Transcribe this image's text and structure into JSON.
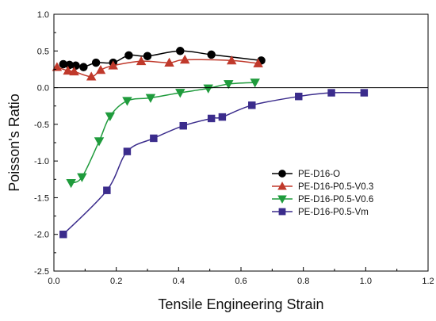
{
  "chart_data": {
    "type": "line",
    "title": "",
    "xlabel": "Tensile Engineering Strain",
    "ylabel": "Poisson's Ratio",
    "xlim": [
      0.0,
      1.2
    ],
    "ylim": [
      -2.5,
      1.0
    ],
    "xticks": [
      "0.0",
      "0.2",
      "0.4",
      "0.6",
      "0.8",
      "1.0",
      "1.2"
    ],
    "yticks": [
      "1.0",
      "0.5",
      "0.0",
      "-0.5",
      "-1.0",
      "-1.5",
      "-2.0",
      "-2.5"
    ],
    "xtick_values": [
      0.0,
      0.2,
      0.4,
      0.6,
      0.8,
      1.0,
      1.2
    ],
    "ytick_values": [
      1.0,
      0.5,
      0.0,
      -0.5,
      -1.0,
      -1.5,
      -2.0,
      -2.5
    ],
    "zero_line": true,
    "grid": false,
    "legend_position": "right-middle",
    "series": [
      {
        "name": "PE-D16-O",
        "color": "#000000",
        "marker": "circle",
        "x": [
          0.03,
          0.05,
          0.07,
          0.095,
          0.135,
          0.19,
          0.24,
          0.3,
          0.405,
          0.505,
          0.665
        ],
        "y": [
          0.32,
          0.31,
          0.3,
          0.28,
          0.34,
          0.34,
          0.44,
          0.43,
          0.5,
          0.45,
          0.37
        ]
      },
      {
        "name": "PE-D16-P0.5-V0.3",
        "color": "#c0392b",
        "marker": "triangle-up",
        "x": [
          0.01,
          0.045,
          0.065,
          0.12,
          0.15,
          0.19,
          0.28,
          0.37,
          0.42,
          0.57,
          0.655
        ],
        "y": [
          0.28,
          0.23,
          0.22,
          0.15,
          0.24,
          0.3,
          0.36,
          0.34,
          0.38,
          0.37,
          0.33
        ]
      },
      {
        "name": "PE-D16-P0.5-V0.6",
        "color": "#1f9b3c",
        "marker": "triangle-down",
        "x": [
          0.055,
          0.09,
          0.145,
          0.18,
          0.235,
          0.31,
          0.405,
          0.495,
          0.56,
          0.645
        ],
        "y": [
          -1.3,
          -1.22,
          -0.73,
          -0.39,
          -0.18,
          -0.14,
          -0.07,
          -0.01,
          0.05,
          0.07
        ]
      },
      {
        "name": "PE-D16-P0.5-Vm",
        "color": "#3b2c8c",
        "marker": "square",
        "x": [
          0.03,
          0.17,
          0.235,
          0.32,
          0.415,
          0.505,
          0.54,
          0.635,
          0.785,
          0.89,
          0.995
        ],
        "y": [
          -2.0,
          -1.4,
          -0.87,
          -0.69,
          -0.52,
          -0.42,
          -0.4,
          -0.24,
          -0.12,
          -0.07,
          -0.07
        ]
      }
    ]
  }
}
